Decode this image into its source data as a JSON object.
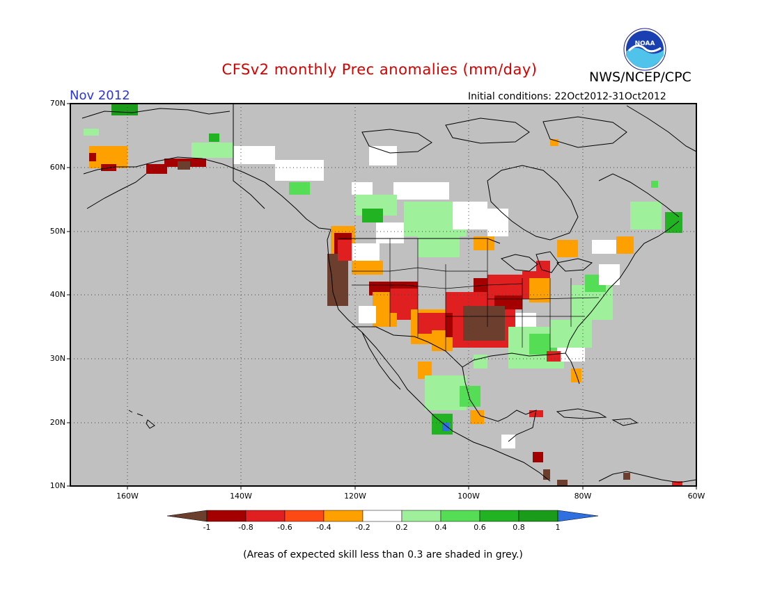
{
  "header": {
    "title": "CFSv2 monthly Prec anomalies (mm/day)",
    "organization": "NWS/NCEP/CPC",
    "month": "Nov 2012",
    "initial_conditions": "Initial conditions: 22Oct2012-31Oct2012",
    "logo_text": "NOAA"
  },
  "map": {
    "lat_ticks": [
      "70N",
      "60N",
      "50N",
      "40N",
      "30N",
      "20N",
      "10N"
    ],
    "lon_ticks": [
      "160W",
      "140W",
      "120W",
      "100W",
      "80W",
      "60W"
    ],
    "mask_color": "#c0c0c0"
  },
  "colorbar": {
    "labels": [
      "-1",
      "-0.8",
      "-0.6",
      "-0.4",
      "-0.2",
      "0.2",
      "0.4",
      "0.6",
      "0.8",
      "1"
    ],
    "colors": [
      "#6b3e2e",
      "#a50000",
      "#e02020",
      "#fd4a14",
      "#fea000",
      "#ffffff",
      "#9ff09a",
      "#55dd55",
      "#22b322",
      "#1a9b1a",
      "#2f6fe0"
    ]
  },
  "footnote": "(Areas of expected skill less than 0.3 are shaded in grey.)"
}
